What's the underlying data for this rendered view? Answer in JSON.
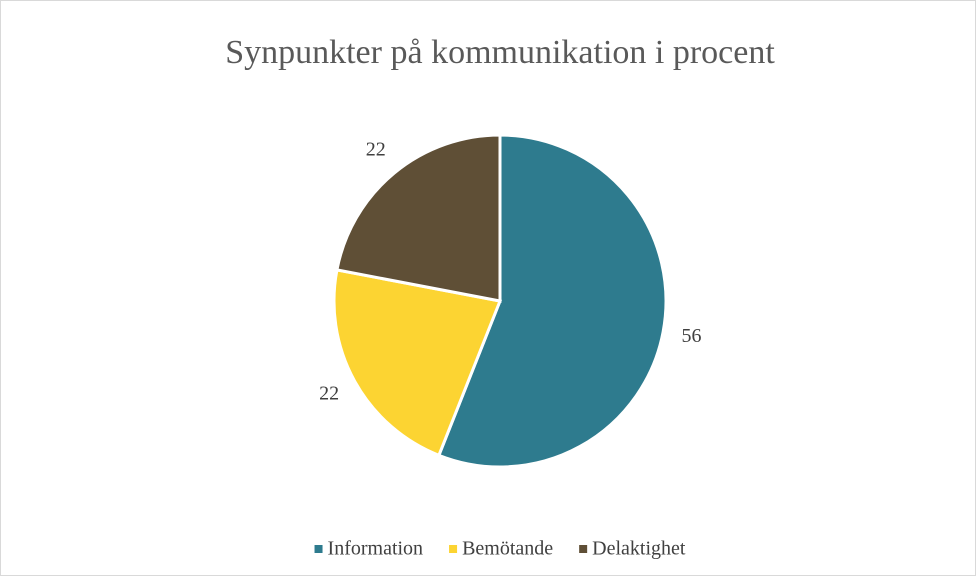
{
  "chart_data": {
    "type": "pie",
    "title": "Synpunkter på kommunikation i procent",
    "categories": [
      "Information",
      "Bemötande",
      "Delaktighet"
    ],
    "values": [
      56,
      22,
      22
    ],
    "colors": [
      "#2e7b8e",
      "#fcd432",
      "#5f4f36"
    ],
    "legend": "bottom"
  }
}
